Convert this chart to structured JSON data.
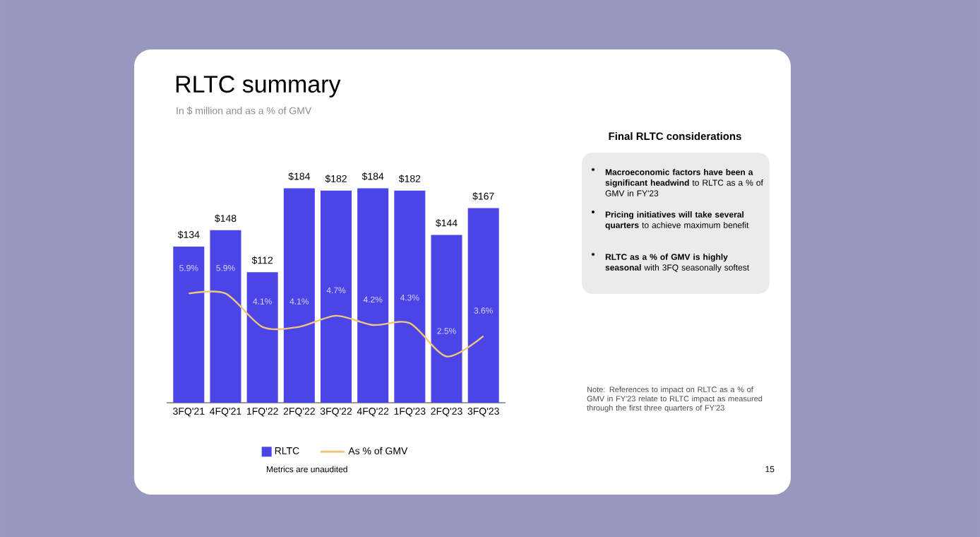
{
  "chart_data": {
    "type": "bar",
    "title": "RLTC summary",
    "subtitle": "In $ million and as a % of GMV",
    "categories": [
      "3FQ'21",
      "4FQ'21",
      "1FQ'22",
      "2FQ'22",
      "3FQ'22",
      "4FQ'22",
      "1FQ'23",
      "2FQ'23",
      "3FQ'23"
    ],
    "series": [
      {
        "name": "RLTC",
        "color": "#4b45e8",
        "values": [
          134,
          148,
          112,
          184,
          182,
          184,
          182,
          144,
          167
        ],
        "value_labels": [
          "$134",
          "$148",
          "$112",
          "$184",
          "$182",
          "$184",
          "$182",
          "$144",
          "$167"
        ]
      },
      {
        "name": "As % of GMV",
        "type": "line",
        "axis": "y2",
        "color": "#f0c67a",
        "values": [
          5.9,
          5.9,
          4.1,
          4.1,
          4.7,
          4.2,
          4.3,
          2.5,
          3.6
        ],
        "value_labels": [
          "5.9%",
          "5.9%",
          "4.1%",
          "4.1%",
          "4.7%",
          "4.2%",
          "4.3%",
          "2.5%",
          "3.6%"
        ]
      }
    ],
    "tick_labels": "x",
    "legend": "bottom",
    "marker": "none",
    "annotations": [
      "Metrics are unaudited",
      "Final RLTC considerations",
      "**Macroeconomic factors have been a significant headwind** to RLTC as a % of GMV in FY'23",
      "**Pricing initiatives will take several quarters** to achieve maximum benefit",
      "**RLTC as a % of GMV is highly seasonal** with 3FQ seasonally softest",
      "Note: References to impact on RLTC as a % of GMV in FY'23 relate to RLTC impact as measured through the first three quarters of FY'23",
      "15"
    ]
  }
}
